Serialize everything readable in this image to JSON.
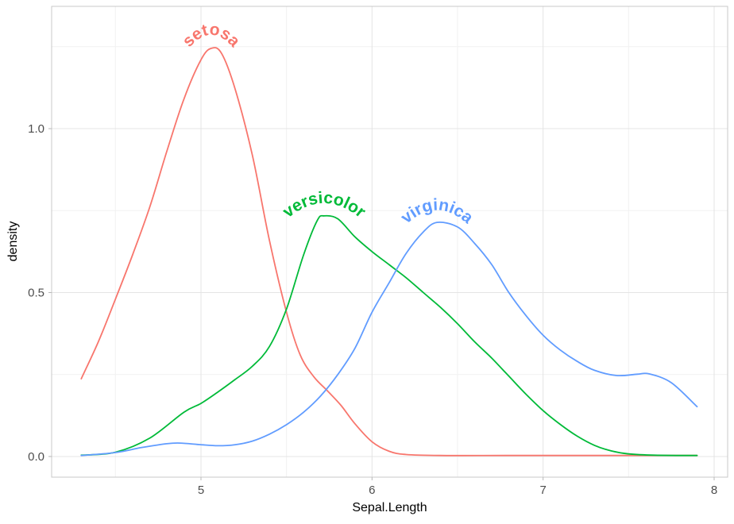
{
  "chart_data": {
    "type": "line",
    "subtype": "kernel-density",
    "title": "",
    "xlabel": "Sepal.Length",
    "ylabel": "density",
    "x_domain": [
      4.127,
      8.079
    ],
    "y_domain": [
      -0.063,
      1.373
    ],
    "x_ticks": {
      "major": [
        5,
        6,
        7,
        8
      ],
      "labels": [
        "5",
        "6",
        "7",
        "8"
      ],
      "minor": [
        4.5,
        5.5,
        6.5,
        7.5
      ]
    },
    "y_ticks": {
      "major": [
        0,
        0.5,
        1
      ],
      "labels": [
        "0.0",
        "0.5",
        "1.0"
      ],
      "minor": [
        0.25,
        0.75,
        1.25
      ]
    },
    "grid": true,
    "legend_position": "none (curved on-line labels)",
    "series": [
      {
        "name": "setosa",
        "label": "setosa",
        "color": "#F8766D",
        "peak": {
          "x": 5.06,
          "y": 1.245
        },
        "points": [
          [
            4.3,
            0.237
          ],
          [
            4.4,
            0.35
          ],
          [
            4.5,
            0.48
          ],
          [
            4.6,
            0.615
          ],
          [
            4.7,
            0.76
          ],
          [
            4.8,
            0.93
          ],
          [
            4.9,
            1.09
          ],
          [
            5.0,
            1.21
          ],
          [
            5.06,
            1.245
          ],
          [
            5.12,
            1.23
          ],
          [
            5.2,
            1.12
          ],
          [
            5.3,
            0.92
          ],
          [
            5.4,
            0.66
          ],
          [
            5.5,
            0.44
          ],
          [
            5.58,
            0.31
          ],
          [
            5.66,
            0.243
          ],
          [
            5.74,
            0.2
          ],
          [
            5.82,
            0.155
          ],
          [
            5.9,
            0.1
          ],
          [
            6.0,
            0.045
          ],
          [
            6.1,
            0.016
          ],
          [
            6.2,
            0.006
          ],
          [
            6.4,
            0.003
          ],
          [
            6.8,
            0.003
          ],
          [
            7.3,
            0.003
          ],
          [
            7.9,
            0.003
          ]
        ]
      },
      {
        "name": "versicolor",
        "label": "versicolor",
        "color": "#00BA38",
        "peak": {
          "x": 5.72,
          "y": 0.734
        },
        "points": [
          [
            4.3,
            0.004
          ],
          [
            4.5,
            0.013
          ],
          [
            4.7,
            0.056
          ],
          [
            4.9,
            0.135
          ],
          [
            5.0,
            0.162
          ],
          [
            5.1,
            0.197
          ],
          [
            5.2,
            0.235
          ],
          [
            5.3,
            0.275
          ],
          [
            5.4,
            0.335
          ],
          [
            5.5,
            0.45
          ],
          [
            5.6,
            0.615
          ],
          [
            5.68,
            0.72
          ],
          [
            5.72,
            0.734
          ],
          [
            5.8,
            0.725
          ],
          [
            5.9,
            0.67
          ],
          [
            6.0,
            0.625
          ],
          [
            6.1,
            0.585
          ],
          [
            6.2,
            0.545
          ],
          [
            6.3,
            0.5
          ],
          [
            6.4,
            0.455
          ],
          [
            6.5,
            0.405
          ],
          [
            6.6,
            0.35
          ],
          [
            6.7,
            0.3
          ],
          [
            6.8,
            0.245
          ],
          [
            6.9,
            0.19
          ],
          [
            7.0,
            0.14
          ],
          [
            7.1,
            0.098
          ],
          [
            7.2,
            0.062
          ],
          [
            7.3,
            0.034
          ],
          [
            7.4,
            0.017
          ],
          [
            7.5,
            0.008
          ],
          [
            7.65,
            0.004
          ],
          [
            7.9,
            0.003
          ]
        ]
      },
      {
        "name": "virginica",
        "label": "virginica",
        "color": "#619CFF",
        "peak": {
          "x": 6.38,
          "y": 0.714
        },
        "points": [
          [
            4.3,
            0.003
          ],
          [
            4.5,
            0.012
          ],
          [
            4.65,
            0.027
          ],
          [
            4.8,
            0.039
          ],
          [
            4.88,
            0.041
          ],
          [
            5.0,
            0.036
          ],
          [
            5.1,
            0.033
          ],
          [
            5.2,
            0.036
          ],
          [
            5.3,
            0.047
          ],
          [
            5.4,
            0.068
          ],
          [
            5.5,
            0.097
          ],
          [
            5.6,
            0.135
          ],
          [
            5.7,
            0.185
          ],
          [
            5.8,
            0.25
          ],
          [
            5.9,
            0.33
          ],
          [
            6.0,
            0.44
          ],
          [
            6.1,
            0.53
          ],
          [
            6.2,
            0.62
          ],
          [
            6.3,
            0.685
          ],
          [
            6.38,
            0.714
          ],
          [
            6.5,
            0.7
          ],
          [
            6.6,
            0.65
          ],
          [
            6.7,
            0.585
          ],
          [
            6.8,
            0.5
          ],
          [
            6.9,
            0.43
          ],
          [
            7.0,
            0.37
          ],
          [
            7.1,
            0.325
          ],
          [
            7.2,
            0.29
          ],
          [
            7.3,
            0.263
          ],
          [
            7.43,
            0.247
          ],
          [
            7.55,
            0.251
          ],
          [
            7.62,
            0.252
          ],
          [
            7.75,
            0.225
          ],
          [
            7.9,
            0.152
          ]
        ]
      }
    ]
  },
  "colors": {
    "background": "#FFFFFF",
    "panel_border": "#C8C8C8",
    "grid_major": "#E4E4E4",
    "grid_minor": "#F1F1F1",
    "tick_mark": "#B8B8B8",
    "tick_label": "#4D4D4D",
    "axis_title": "#000000"
  }
}
